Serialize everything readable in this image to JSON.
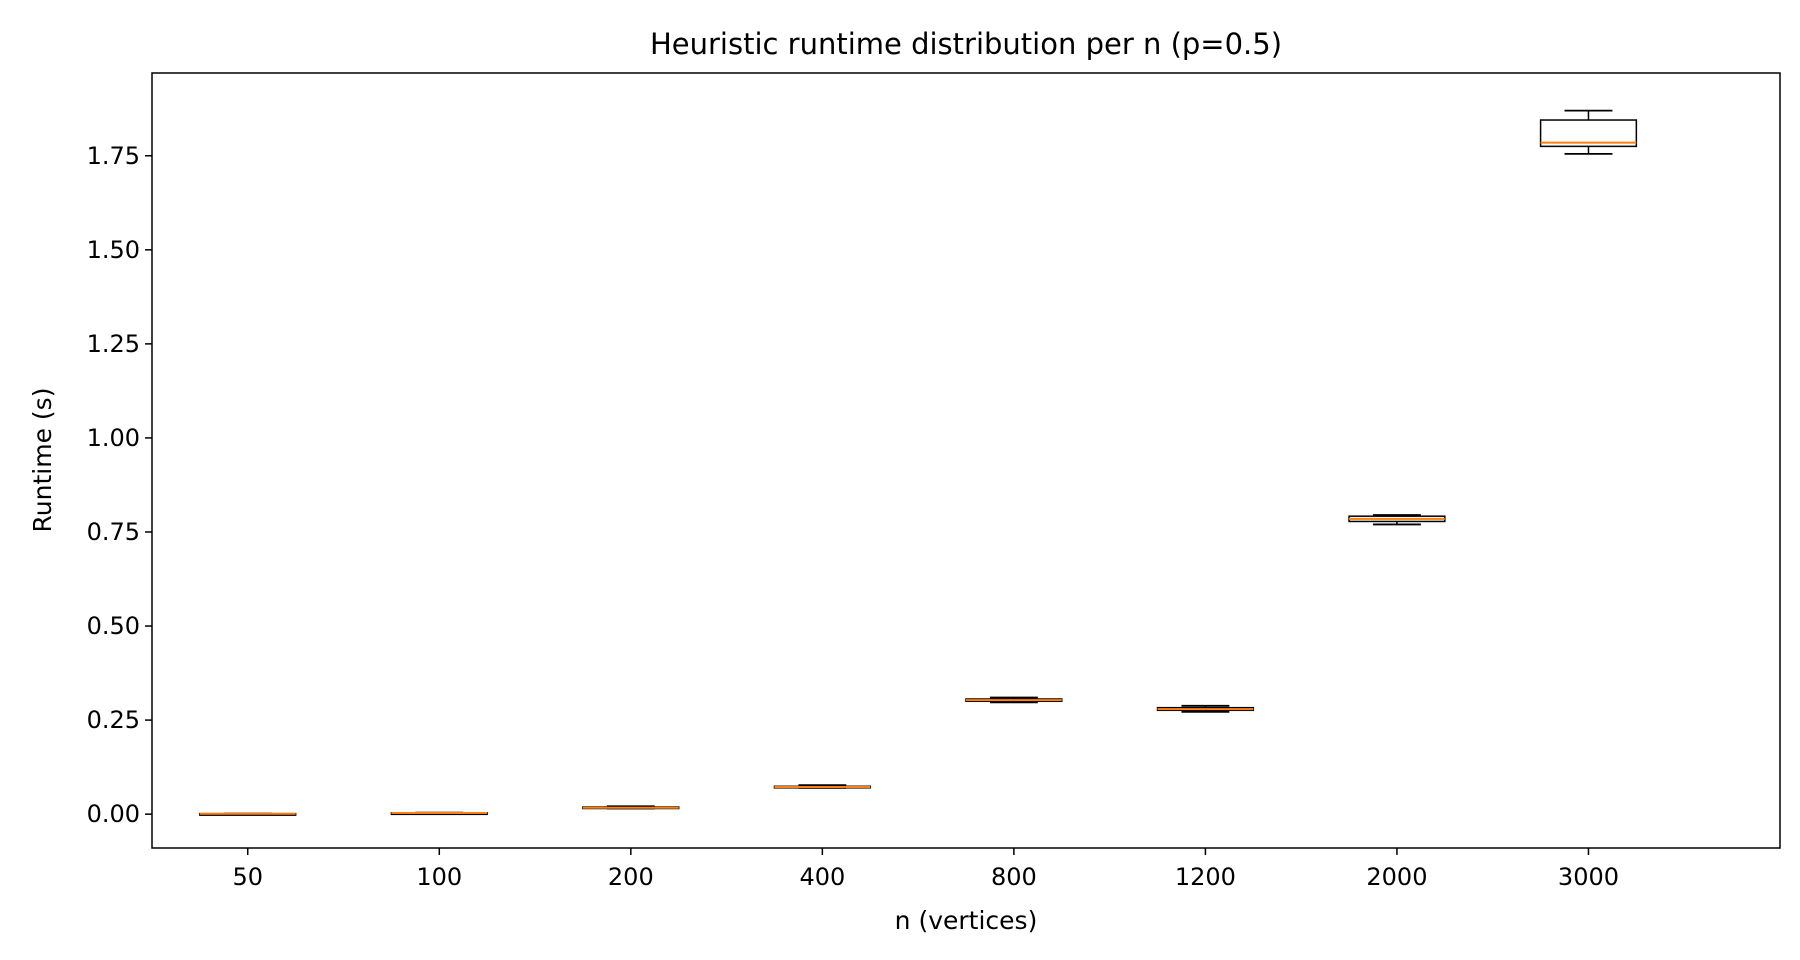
{
  "chart_data": {
    "type": "box",
    "title": "Heuristic runtime distribution per n (p=0.5)",
    "xlabel": "n (vertices)",
    "ylabel": "Runtime (s)",
    "ylim": [
      -0.09,
      1.97
    ],
    "yticks": [
      "0.00",
      "0.25",
      "0.50",
      "0.75",
      "1.00",
      "1.25",
      "1.50",
      "1.75"
    ],
    "ytick_values": [
      0.0,
      0.25,
      0.5,
      0.75,
      1.0,
      1.25,
      1.5,
      1.75
    ],
    "grid": false,
    "categories": [
      "50",
      "100",
      "200",
      "400",
      "800",
      "1200",
      "2000",
      "3000"
    ],
    "boxes": [
      {
        "whisker_low": 0.0005,
        "q1": 0.0008,
        "median": 0.001,
        "q3": 0.0013,
        "whisker_high": 0.0016
      },
      {
        "whisker_low": 0.002,
        "q1": 0.0025,
        "median": 0.003,
        "q3": 0.0035,
        "whisker_high": 0.004
      },
      {
        "whisker_low": 0.015,
        "q1": 0.016,
        "median": 0.017,
        "q3": 0.019,
        "whisker_high": 0.021
      },
      {
        "whisker_low": 0.07,
        "q1": 0.071,
        "median": 0.072,
        "q3": 0.074,
        "whisker_high": 0.077
      },
      {
        "whisker_low": 0.297,
        "q1": 0.3,
        "median": 0.303,
        "q3": 0.306,
        "whisker_high": 0.31
      },
      {
        "whisker_low": 0.272,
        "q1": 0.276,
        "median": 0.279,
        "q3": 0.283,
        "whisker_high": 0.288
      },
      {
        "whisker_low": 0.77,
        "q1": 0.778,
        "median": 0.785,
        "q3": 0.792,
        "whisker_high": 0.795
      },
      {
        "whisker_low": 1.755,
        "q1": 1.775,
        "median": 1.785,
        "q3": 1.845,
        "whisker_high": 1.87
      }
    ],
    "colors": {
      "box": "#000000",
      "median": "#ff7f0e",
      "axes": "#000000"
    }
  }
}
